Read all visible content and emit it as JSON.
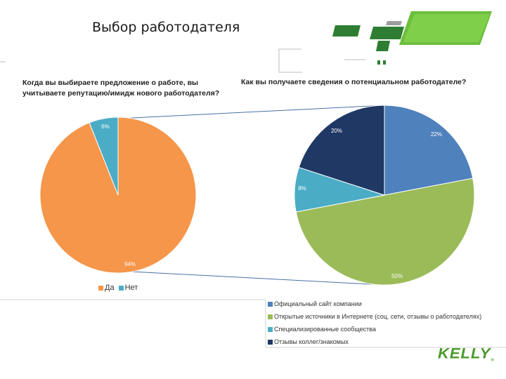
{
  "page": {
    "title": "Выбор работодателя",
    "logo_text": "KELLY",
    "logo_mark": "®"
  },
  "colors": {
    "accent_green": "#5aa832",
    "dark_green": "#2e7d32"
  },
  "chart_data": [
    {
      "type": "pie",
      "title": "Когда вы выбираете предложение о работе, вы учитываете репутацию/имидж нового работодателя?",
      "categories": [
        "Да",
        "Нет"
      ],
      "values": [
        94,
        6
      ],
      "labels": [
        "94%",
        "6%"
      ],
      "colors": [
        "#f5964a",
        "#4bacc6"
      ],
      "legend_position": "bottom"
    },
    {
      "type": "pie",
      "title": "Как вы получаете сведения о потенциальном работодателе?",
      "categories": [
        "Официальный сайт компании",
        "Открытые источники в Интернете (соц. сети, отзывы о работодателях)",
        "Специализированные сообщества",
        "Отзывы коллег/знакомых"
      ],
      "values": [
        22,
        50,
        8,
        20
      ],
      "labels": [
        "22%",
        "50%",
        "8%",
        "20%"
      ],
      "colors": [
        "#4f81bd",
        "#9bbb59",
        "#4bacc6",
        "#1f3864"
      ],
      "legend_position": "bottom"
    }
  ]
}
